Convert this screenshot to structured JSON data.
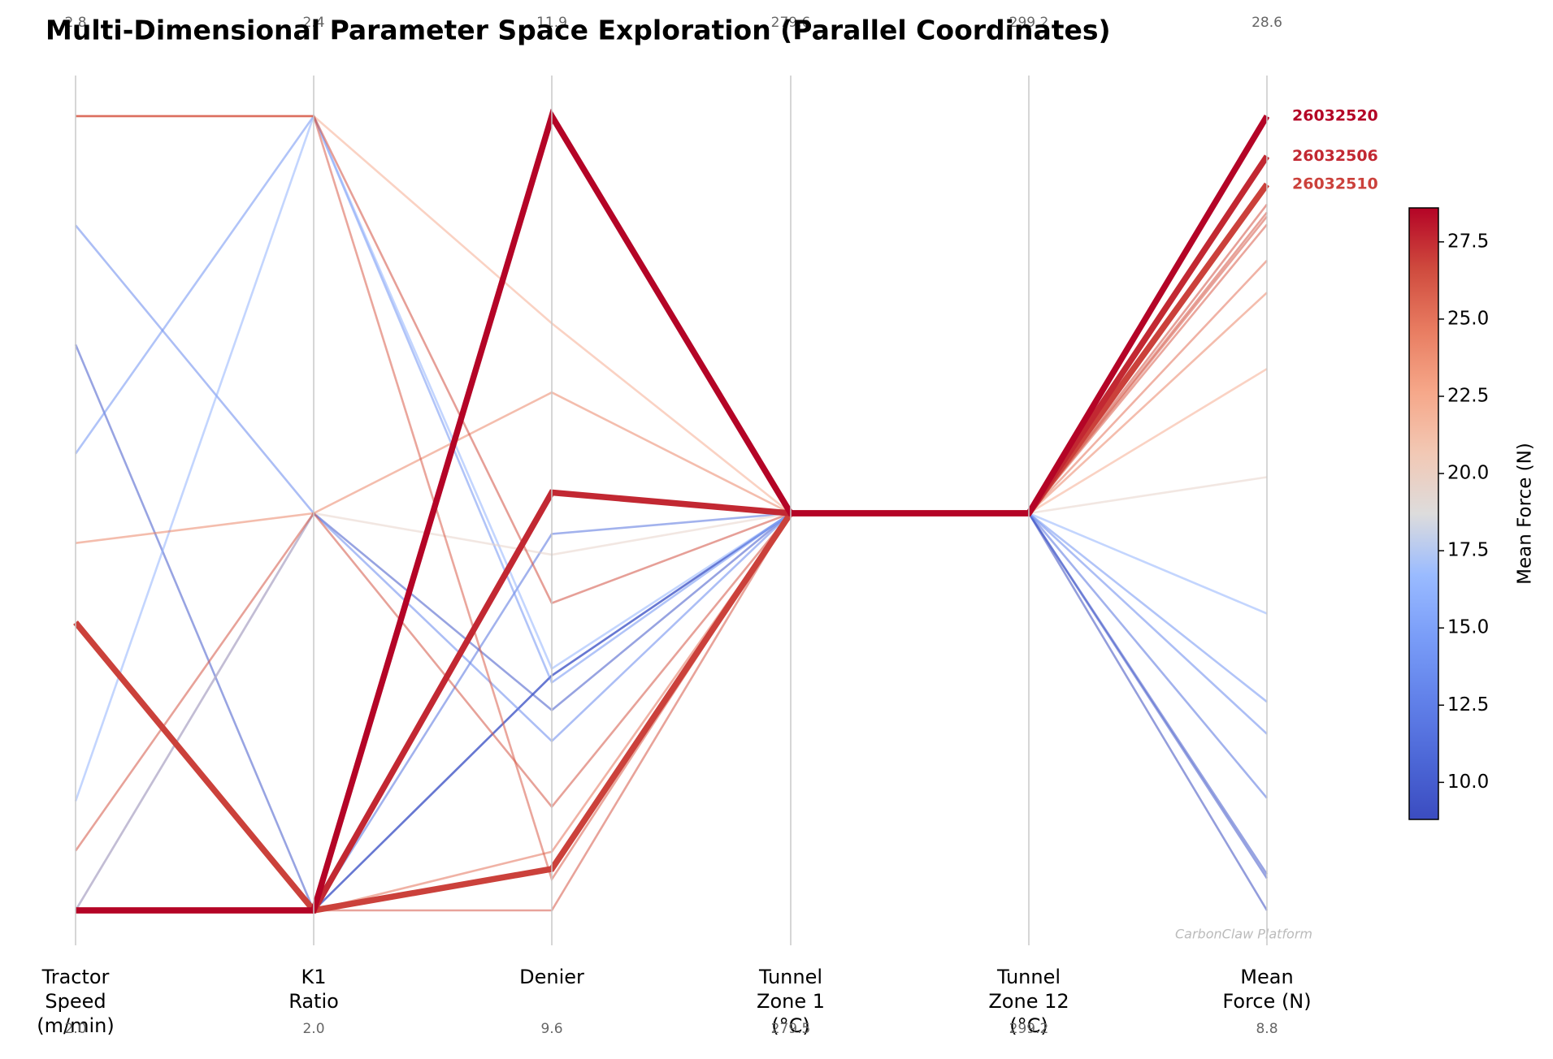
{
  "chart_data": {
    "type": "parallel",
    "title": "Multi-Dimensional Parameter Space Exploration (Parallel Coordinates)",
    "axes": [
      {
        "label": "Tractor\nSpeed\n(m/min)",
        "lim": [
          2.0,
          2.8
        ],
        "ticks": [
          {
            "value": 2.0,
            "label": "2.0"
          },
          2.8
        ]
      },
      {
        "label": "K1\nRatio",
        "lim": [
          2.0,
          2.4
        ],
        "ticks": [
          {
            "value": 2.0,
            "label": "2.0"
          },
          2.4
        ]
      },
      {
        "label": "Denier",
        "lim": [
          9.6,
          11.9
        ],
        "ticks": [
          9.6,
          11.9
        ]
      },
      {
        "label": "Tunnel\nZone 1\n(°C)",
        "lim": [
          279.5,
          279.6
        ],
        "ticks": [
          279.5,
          279.6
        ]
      },
      {
        "label": "Tunnel\nZone 12\n(°C)",
        "lim": [
          299.15,
          299.25
        ],
        "ticks": [
          {
            "value": 299.15,
            "label": "299.2"
          },
          {
            "value": 299.25,
            "label": "299.2"
          }
        ]
      },
      {
        "label": "Mean\nForce (N)",
        "lim": [
          8.8,
          28.6
        ],
        "ticks": [
          8.8,
          28.6
        ]
      }
    ],
    "series": [
      {
        "values": [
          2.0,
          2.0,
          10.28,
          279.55,
          299.2,
          8.8
        ]
      },
      {
        "values": [
          2.0,
          2.2,
          10.18,
          279.55,
          299.2,
          9.6
        ]
      },
      {
        "values": [
          2.57,
          2.0,
          10.28,
          279.55,
          299.2,
          9.7
        ]
      },
      {
        "values": [
          2.0,
          2.0,
          10.69,
          279.55,
          299.2,
          11.6
        ]
      },
      {
        "values": [
          2.69,
          2.2,
          10.09,
          279.55,
          299.2,
          13.2
        ]
      },
      {
        "values": [
          2.46,
          2.4,
          10.26,
          279.55,
          299.2,
          14.0
        ]
      },
      {
        "values": [
          2.11,
          2.4,
          10.3,
          279.55,
          299.2,
          16.2
        ]
      },
      {
        "values": [
          2.0,
          2.2,
          10.63,
          279.55,
          299.2,
          19.6
        ]
      },
      {
        "values": [
          2.8,
          2.4,
          11.3,
          279.55,
          299.2,
          22.3
        ]
      },
      {
        "values": [
          2.37,
          2.2,
          11.1,
          279.55,
          299.2,
          24.2
        ]
      },
      {
        "values": [
          2.0,
          2.0,
          9.77,
          279.55,
          299.2,
          25.0
        ]
      },
      {
        "values": [
          2.8,
          2.4,
          9.69,
          279.55,
          299.2,
          25.9
        ]
      },
      {
        "values": [
          2.0,
          2.0,
          9.6,
          279.55,
          299.2,
          26.1
        ]
      },
      {
        "values": [
          2.06,
          2.2,
          9.9,
          279.55,
          299.2,
          26.2
        ]
      },
      {
        "values": [
          2.8,
          2.4,
          10.49,
          279.55,
          299.2,
          26.4
        ]
      },
      {
        "name": "26032510",
        "values": [
          2.29,
          2.0,
          9.72,
          279.55,
          299.2,
          26.9
        ]
      },
      {
        "name": "26032506",
        "values": [
          2.0,
          2.0,
          10.81,
          279.55,
          299.2,
          27.6
        ]
      },
      {
        "name": "26032520",
        "values": [
          2.0,
          2.0,
          11.9,
          279.55,
          299.2,
          28.6
        ]
      }
    ],
    "colormap": "coolwarm",
    "colorbar": {
      "label": "Mean Force (N)",
      "lim": [
        8.8,
        28.6
      ],
      "ticks": [
        {
          "value": 10,
          "label": "10.0"
        },
        12.5,
        {
          "value": 15,
          "label": "15.0"
        },
        17.5,
        {
          "value": 20,
          "label": "20.0"
        },
        22.5,
        {
          "value": 25,
          "label": "25.0"
        },
        27.5
      ]
    },
    "annotation": "CarbonClaw Platform"
  }
}
